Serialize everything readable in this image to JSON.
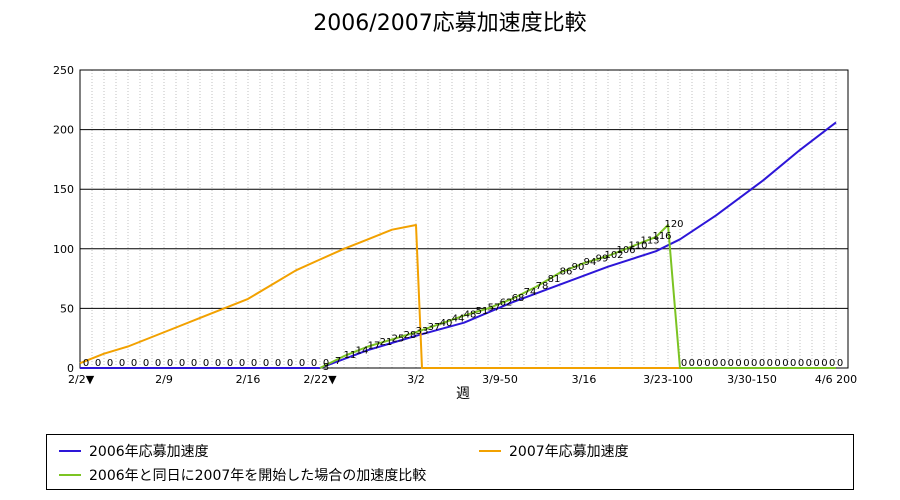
{
  "chart_data": {
    "type": "line",
    "title": "2006/2007応募加速度比較",
    "xlabel": "週",
    "ylabel": "",
    "ylim": [
      0,
      250
    ],
    "yticks": [
      0,
      50,
      100,
      150,
      200,
      250
    ],
    "xticks": [
      {
        "label": "2/2▼",
        "x": 0
      },
      {
        "label": "2/9",
        "x": 7
      },
      {
        "label": "2/16",
        "x": 14
      },
      {
        "label": "2/22▼",
        "x": 20
      },
      {
        "label": "3/2",
        "x": 28
      },
      {
        "label": "3/9-50",
        "x": 35
      },
      {
        "label": "3/16",
        "x": 42
      },
      {
        "label": "3/23-100",
        "x": 49
      },
      {
        "label": "3/30-150",
        "x": 56
      },
      {
        "label": "4/6 200",
        "x": 63
      }
    ],
    "grid": true,
    "legend_position": "bottom",
    "series": [
      {
        "name": "2006年応募加速度",
        "color": "#2d16d8",
        "x": [
          0,
          20,
          24,
          28,
          32,
          36,
          40,
          44,
          48,
          50,
          53,
          57,
          60,
          63
        ],
        "values": [
          0,
          0,
          15,
          27,
          38,
          55,
          70,
          85,
          98,
          108,
          128,
          158,
          183,
          206
        ]
      },
      {
        "name": "2007年応募加速度",
        "color": "#f2a100",
        "x": [
          0,
          2,
          4,
          6,
          8,
          10,
          12,
          14,
          16,
          18,
          20,
          22,
          24,
          26,
          28,
          28.5,
          30,
          63
        ],
        "values": [
          4,
          12,
          18,
          26,
          34,
          42,
          50,
          58,
          70,
          82,
          91,
          100,
          108,
          116,
          120,
          0,
          0,
          0
        ]
      },
      {
        "name": "2006年と同日に2007年を開始した場合の加速度比較",
        "color": "#7cc423",
        "x": [
          20,
          22,
          24,
          26,
          28,
          30,
          32,
          34,
          36,
          38,
          40,
          42,
          44,
          46,
          48,
          49,
          50,
          63
        ],
        "values": [
          0,
          10,
          18,
          24,
          30,
          37,
          44,
          50,
          58,
          68,
          80,
          88,
          94,
          102,
          110,
          120,
          0,
          0
        ]
      }
    ],
    "data_labels_2007": [
      "0",
      "0",
      "0",
      "0",
      "0",
      "0",
      "0",
      "0",
      "0",
      "0",
      "0",
      "0",
      "0",
      "0",
      "0",
      "0",
      "0",
      "0",
      "0",
      "0",
      "0"
    ],
    "data_labels_overlay": [
      "3",
      "7",
      "11",
      "14",
      "17",
      "21",
      "25",
      "28",
      "33",
      "37",
      "40",
      "44",
      "48",
      "51",
      "57",
      "62",
      "68",
      "74",
      "78",
      "81",
      "86",
      "90",
      "94",
      "99",
      "102",
      "106",
      "110",
      "113",
      "116",
      "120"
    ],
    "data_labels_tail": [
      "0",
      "0",
      "0",
      "0",
      "0",
      "0",
      "0",
      "0",
      "0",
      "0",
      "0",
      "0",
      "0",
      "0",
      "0",
      "0",
      "0",
      "0",
      "0",
      "0",
      "0"
    ]
  },
  "legend": {
    "item1": "2006年応募加速度",
    "item2": "2007年応募加速度",
    "item3": "2006年と同日に2007年を開始した場合の加速度比較"
  }
}
